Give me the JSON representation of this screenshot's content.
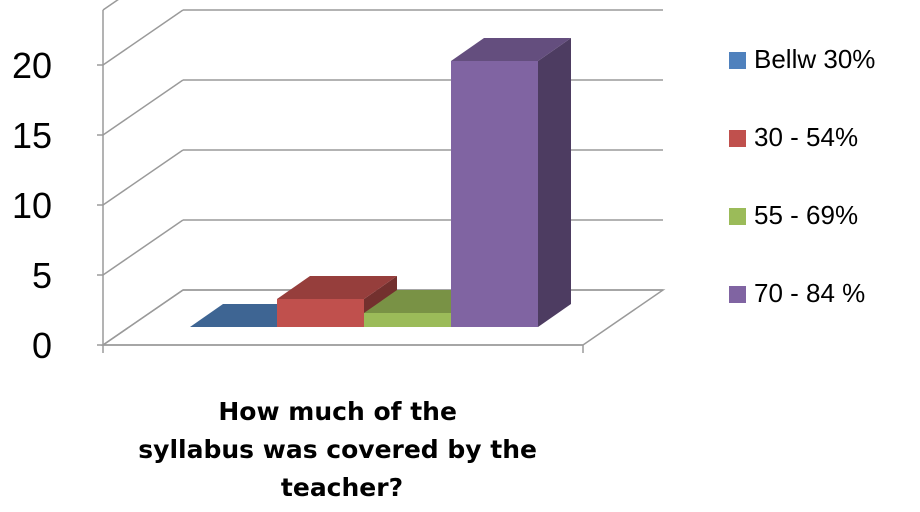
{
  "chart_data": {
    "type": "bar",
    "style": "3d-column",
    "categories": [
      "How much of the syllabus was covered by the teacher?"
    ],
    "xlabel_lines": [
      "How much of the",
      "syllabus was covered by the",
      "teacher?"
    ],
    "series": [
      {
        "name": "Bellw 30%",
        "color": "#4F81BD",
        "values": [
          0
        ]
      },
      {
        "name": "30 - 54%",
        "color": "#C0504D",
        "values": [
          2
        ]
      },
      {
        "name": "55 - 69%",
        "color": "#9BBB59",
        "values": [
          1
        ]
      },
      {
        "name": "70 - 84 %",
        "color": "#8064A2",
        "values": [
          19
        ]
      }
    ],
    "yticks": [
      "0",
      "5",
      "10",
      "15",
      "20"
    ],
    "ylim": [
      0,
      20
    ],
    "grid": true,
    "legend_position": "right"
  }
}
